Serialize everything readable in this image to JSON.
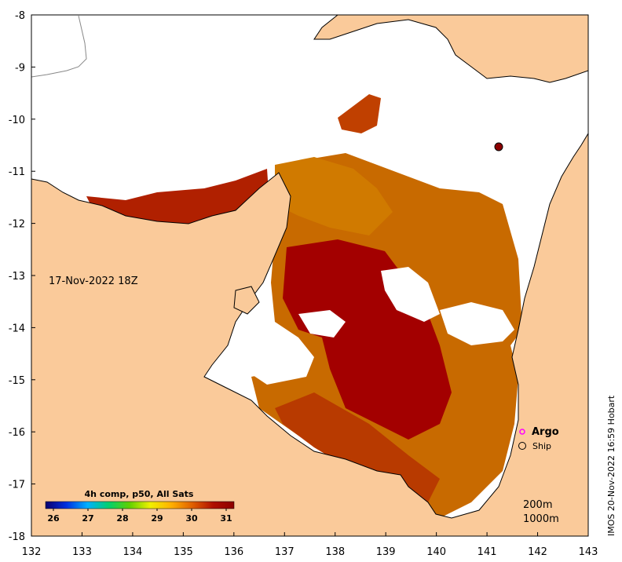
{
  "map": {
    "date_label": "17-Nov-2022 18Z",
    "x_ticks": [
      "132",
      "133",
      "134",
      "135",
      "136",
      "137",
      "138",
      "139",
      "140",
      "141",
      "142",
      "143"
    ],
    "y_ticks": [
      "-8",
      "-9",
      "-10",
      "-11",
      "-12",
      "-13",
      "-14",
      "-15",
      "-16",
      "-17",
      "-18"
    ],
    "lon_range": [
      132,
      143
    ],
    "lat_range": [
      -18,
      -8
    ],
    "colors": {
      "land": "#FACA9A",
      "sea_no_data": "#FFFFFF",
      "sst_warm": "#A30000",
      "sst_mid": "#C85A00",
      "sst_cool": "#E09000",
      "coast": "#000000"
    }
  },
  "colorbar": {
    "title": "4h comp, p50, All Sats",
    "ticks": [
      "26",
      "27",
      "28",
      "29",
      "30",
      "31"
    ],
    "range": [
      26,
      31
    ],
    "stops": [
      "#0a006e",
      "#0030e0",
      "#00b0ff",
      "#00d070",
      "#60d000",
      "#f0f000",
      "#ffb000",
      "#e06000",
      "#b01000",
      "#8c0000"
    ]
  },
  "legend": {
    "argo_label": "Argo",
    "ship_label": "Ship",
    "argo_color": "#ff00ff"
  },
  "isobaths": {
    "line1": "200m",
    "line2": "1000m"
  },
  "credit": "IMOS 20-Nov-2022 16:59 Hobart"
}
